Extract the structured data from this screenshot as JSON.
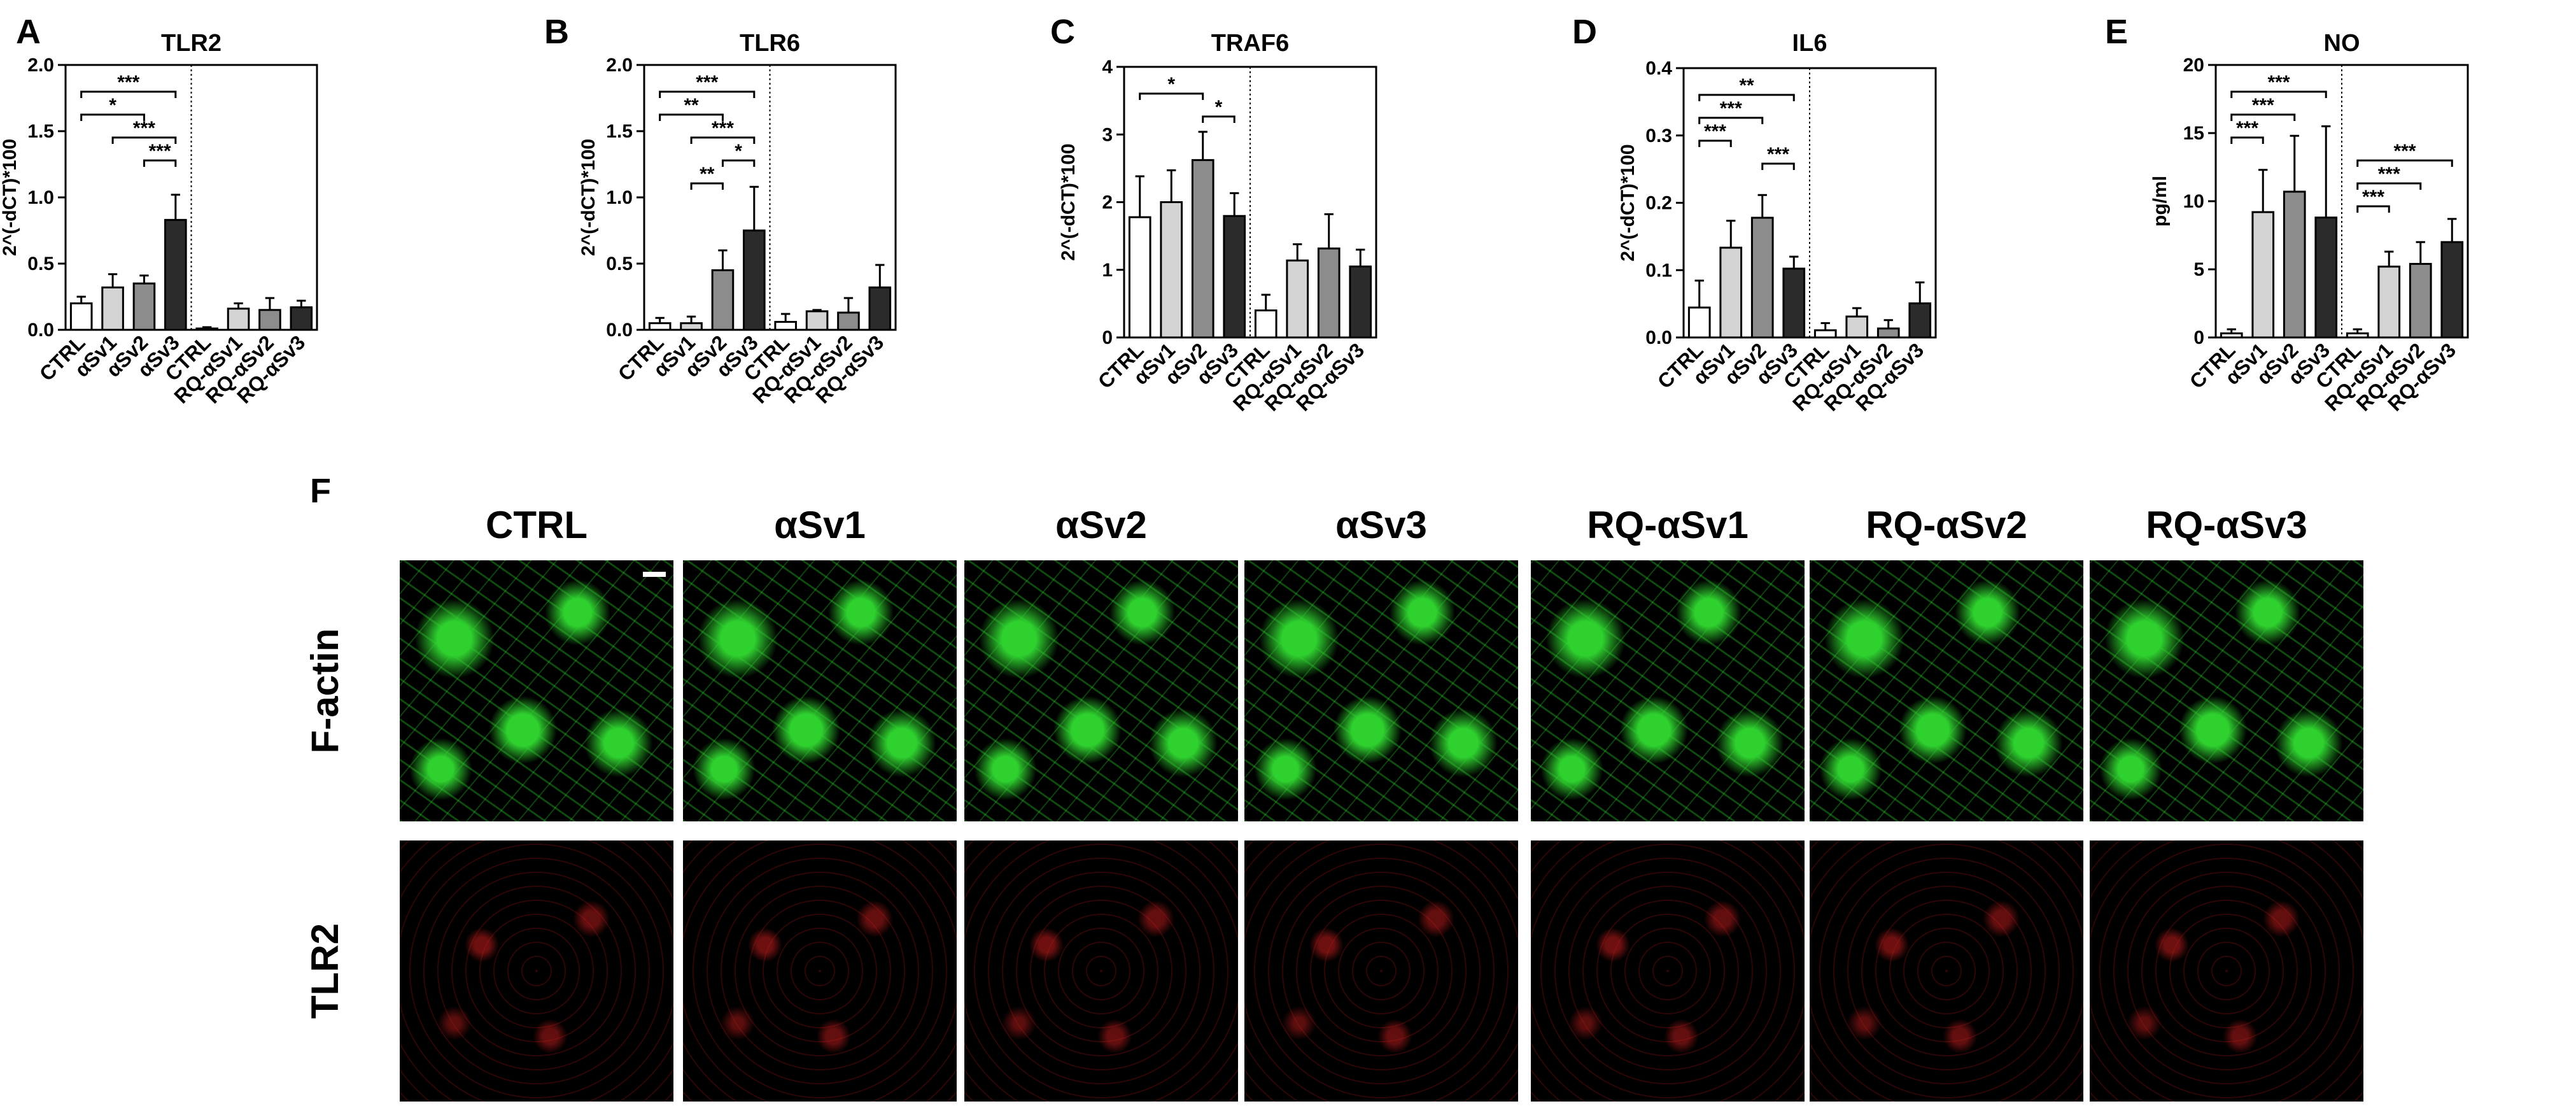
{
  "panel_f_letter": "F",
  "chart_data": [
    {
      "panel": "A",
      "type": "bar",
      "title": "TLR2",
      "ylabel": "2^(-dCT)*100",
      "ylim": [
        0,
        2.0
      ],
      "yticks": [
        "0.0",
        "0.5",
        "1.0",
        "1.5",
        "2.0"
      ],
      "categories": [
        "CTRL",
        "αSv1",
        "αSv2",
        "αSv3",
        "CTRL",
        "RQ-αSv1",
        "RQ-αSv2",
        "RQ-αSv3"
      ],
      "values": [
        0.2,
        0.32,
        0.35,
        0.83,
        0.01,
        0.16,
        0.15,
        0.17
      ],
      "errors": [
        0.05,
        0.1,
        0.06,
        0.19,
        0.01,
        0.04,
        0.09,
        0.05
      ],
      "fills": [
        "#ffffff",
        "#d4d4d4",
        "#8c8c8c",
        "#2b2b2b",
        "#ffffff",
        "#d4d4d4",
        "#8c8c8c",
        "#2b2b2b"
      ],
      "significance": [
        {
          "from": 0,
          "to": 3,
          "label": "***"
        },
        {
          "from": 0,
          "to": 2,
          "label": "*"
        },
        {
          "from": 1,
          "to": 3,
          "label": "***"
        },
        {
          "from": 2,
          "to": 3,
          "label": "***"
        }
      ]
    },
    {
      "panel": "B",
      "type": "bar",
      "title": "TLR6",
      "ylabel": "2^(-dCT)*100",
      "ylim": [
        0,
        2.0
      ],
      "yticks": [
        "0.0",
        "0.5",
        "1.0",
        "1.5",
        "2.0"
      ],
      "categories": [
        "CTRL",
        "αSv1",
        "αSv2",
        "αSv3",
        "CTRL",
        "RQ-αSv1",
        "RQ-αSv2",
        "RQ-αSv3"
      ],
      "values": [
        0.05,
        0.05,
        0.45,
        0.75,
        0.06,
        0.14,
        0.13,
        0.32
      ],
      "errors": [
        0.04,
        0.05,
        0.15,
        0.33,
        0.06,
        0.01,
        0.11,
        0.17
      ],
      "fills": [
        "#ffffff",
        "#d4d4d4",
        "#8c8c8c",
        "#2b2b2b",
        "#ffffff",
        "#d4d4d4",
        "#8c8c8c",
        "#2b2b2b"
      ],
      "significance": [
        {
          "from": 0,
          "to": 3,
          "label": "***"
        },
        {
          "from": 0,
          "to": 2,
          "label": "**"
        },
        {
          "from": 1,
          "to": 3,
          "label": "***"
        },
        {
          "from": 2,
          "to": 3,
          "label": "*"
        },
        {
          "from": 1,
          "to": 2,
          "label": "**"
        }
      ]
    },
    {
      "panel": "C",
      "type": "bar",
      "title": "TRAF6",
      "ylabel": "2^(-dCT)*100",
      "ylim": [
        0,
        4.5
      ],
      "yticks": [
        "0",
        "1",
        "2",
        "3",
        "4"
      ],
      "categories": [
        "CTRL",
        "αSv1",
        "αSv2",
        "αSv3",
        "CTRL",
        "RQ-αSv1",
        "RQ-αSv2",
        "RQ-αSv3"
      ],
      "values": [
        2.0,
        2.25,
        2.95,
        2.02,
        0.45,
        1.28,
        1.48,
        1.18
      ],
      "errors": [
        0.68,
        0.53,
        0.47,
        0.38,
        0.26,
        0.27,
        0.57,
        0.28
      ],
      "fills": [
        "#ffffff",
        "#d4d4d4",
        "#8c8c8c",
        "#2b2b2b",
        "#ffffff",
        "#d4d4d4",
        "#8c8c8c",
        "#2b2b2b"
      ],
      "significance": [
        {
          "from": 0,
          "to": 2,
          "label": "*"
        },
        {
          "from": 2,
          "to": 3,
          "label": "*"
        }
      ]
    },
    {
      "panel": "D",
      "type": "bar",
      "title": "IL6",
      "ylabel": "2^(-dCT)*100",
      "ylim": [
        0,
        0.45
      ],
      "yticks": [
        "0.0",
        "0.1",
        "0.2",
        "0.3",
        "0.4"
      ],
      "categories": [
        "CTRL",
        "αSv1",
        "αSv2",
        "αSv3",
        "CTRL",
        "RQ-αSv1",
        "RQ-αSv2",
        "RQ-αSv3"
      ],
      "values": [
        0.05,
        0.15,
        0.2,
        0.115,
        0.012,
        0.035,
        0.015,
        0.057
      ],
      "errors": [
        0.045,
        0.045,
        0.038,
        0.02,
        0.012,
        0.014,
        0.014,
        0.035
      ],
      "fills": [
        "#ffffff",
        "#d4d4d4",
        "#8c8c8c",
        "#2b2b2b",
        "#ffffff",
        "#d4d4d4",
        "#8c8c8c",
        "#2b2b2b"
      ],
      "significance": [
        {
          "from": 0,
          "to": 3,
          "label": "**"
        },
        {
          "from": 0,
          "to": 2,
          "label": "***"
        },
        {
          "from": 0,
          "to": 1,
          "label": "***"
        },
        {
          "from": 2,
          "to": 3,
          "label": "***"
        }
      ]
    },
    {
      "panel": "E",
      "type": "bar",
      "title": "NO",
      "ylabel": "pg/ml",
      "ylim": [
        0,
        20
      ],
      "yticks": [
        "0",
        "5",
        "10",
        "15",
        "20"
      ],
      "categories": [
        "CTRL",
        "αSv1",
        "αSv2",
        "αSv3",
        "CTRL",
        "RQ-αSv1",
        "RQ-αSv2",
        "RQ-αSv3"
      ],
      "values": [
        0.3,
        9.2,
        10.7,
        8.8,
        0.3,
        5.2,
        5.4,
        7.0
      ],
      "errors": [
        0.3,
        3.1,
        4.1,
        6.7,
        0.3,
        1.1,
        1.6,
        1.7
      ],
      "fills": [
        "#ffffff",
        "#d4d4d4",
        "#8c8c8c",
        "#2b2b2b",
        "#ffffff",
        "#d4d4d4",
        "#8c8c8c",
        "#2b2b2b"
      ],
      "significance": [
        {
          "from": 0,
          "to": 3,
          "label": "***"
        },
        {
          "from": 0,
          "to": 2,
          "label": "***"
        },
        {
          "from": 0,
          "to": 1,
          "label": "***"
        },
        {
          "from": 4,
          "to": 7,
          "label": "***"
        },
        {
          "from": 4,
          "to": 6,
          "label": "***"
        },
        {
          "from": 4,
          "to": 5,
          "label": "***"
        }
      ]
    }
  ],
  "image_grid": {
    "columns": [
      "CTRL",
      "αSv1",
      "αSv2",
      "αSv3",
      "RQ-αSv1",
      "RQ-αSv2",
      "RQ-αSv3"
    ],
    "rows": [
      {
        "label": "F-actin",
        "color": "#2fd12f"
      },
      {
        "label": "TLR2",
        "color": "#c81e1e"
      }
    ]
  }
}
